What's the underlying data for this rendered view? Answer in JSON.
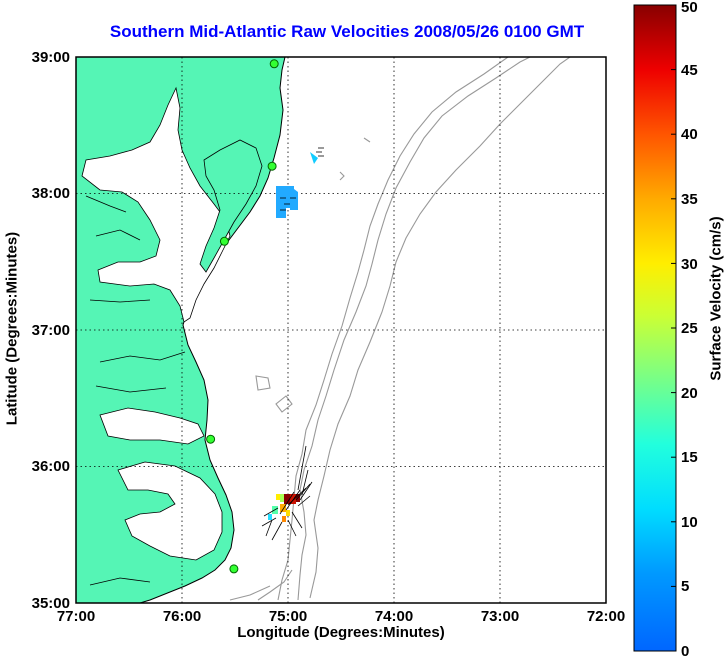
{
  "title": "Southern Mid-Atlantic Raw Velocities 2008/05/26 0100 GMT",
  "map": {
    "x_label": "Longitude (Degrees:Minutes)",
    "y_label": "Latitude (Degrees:Minutes)",
    "lon_ticks": [
      "77:00",
      "76:00",
      "75:00",
      "74:00",
      "73:00",
      "72:00"
    ],
    "lat_ticks": [
      "39:00",
      "38:00",
      "37:00",
      "36:00",
      "35:00"
    ],
    "lon_range": [
      -77,
      -72
    ],
    "lat_range": [
      35,
      39
    ],
    "grid": "dotted",
    "colors": {
      "land": "#55f5b5",
      "coast": "#000000",
      "bathymetry": "#999999",
      "frame": "#000000"
    },
    "radar_sites": [
      {
        "lon": -75.13,
        "lat": 38.95
      },
      {
        "lon": -75.15,
        "lat": 38.2
      },
      {
        "lon": -75.6,
        "lat": 37.65
      },
      {
        "lon": -75.73,
        "lat": 36.2
      },
      {
        "lon": -75.51,
        "lat": 35.25
      }
    ]
  },
  "colorbar": {
    "label": "Surface Velocity (cm/s)",
    "min": 0,
    "max": 50,
    "ticks": [
      "50",
      "45",
      "40",
      "35",
      "30",
      "25",
      "20",
      "15",
      "10",
      "5",
      "0"
    ],
    "colormap": "jet"
  }
}
